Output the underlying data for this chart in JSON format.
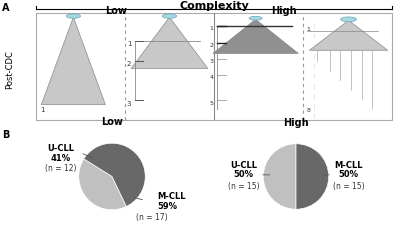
{
  "title": "Complexity",
  "panel_a_label": "A",
  "panel_b_label": "B",
  "y_label_a": "Post-CDC",
  "low_label": "Low",
  "high_label": "High",
  "pie_low": {
    "title": "Low",
    "slices": [
      41,
      59
    ],
    "colors": [
      "#c0c0c0",
      "#686868"
    ],
    "startangle": 148
  },
  "pie_high": {
    "title": "High",
    "slices": [
      50,
      50
    ],
    "colors": [
      "#c0c0c0",
      "#686868"
    ],
    "startangle": 90
  },
  "bg_color": "#ffffff",
  "text_color": "#000000",
  "box_edge_color": "#aaaaaa",
  "tri_light": "#c8c8c8",
  "tri_dark": "#909090",
  "circle_fill": "#a8d8e0",
  "circle_edge": "#70b0c0",
  "dashed_color": "#999999",
  "separator_color": "#888888"
}
